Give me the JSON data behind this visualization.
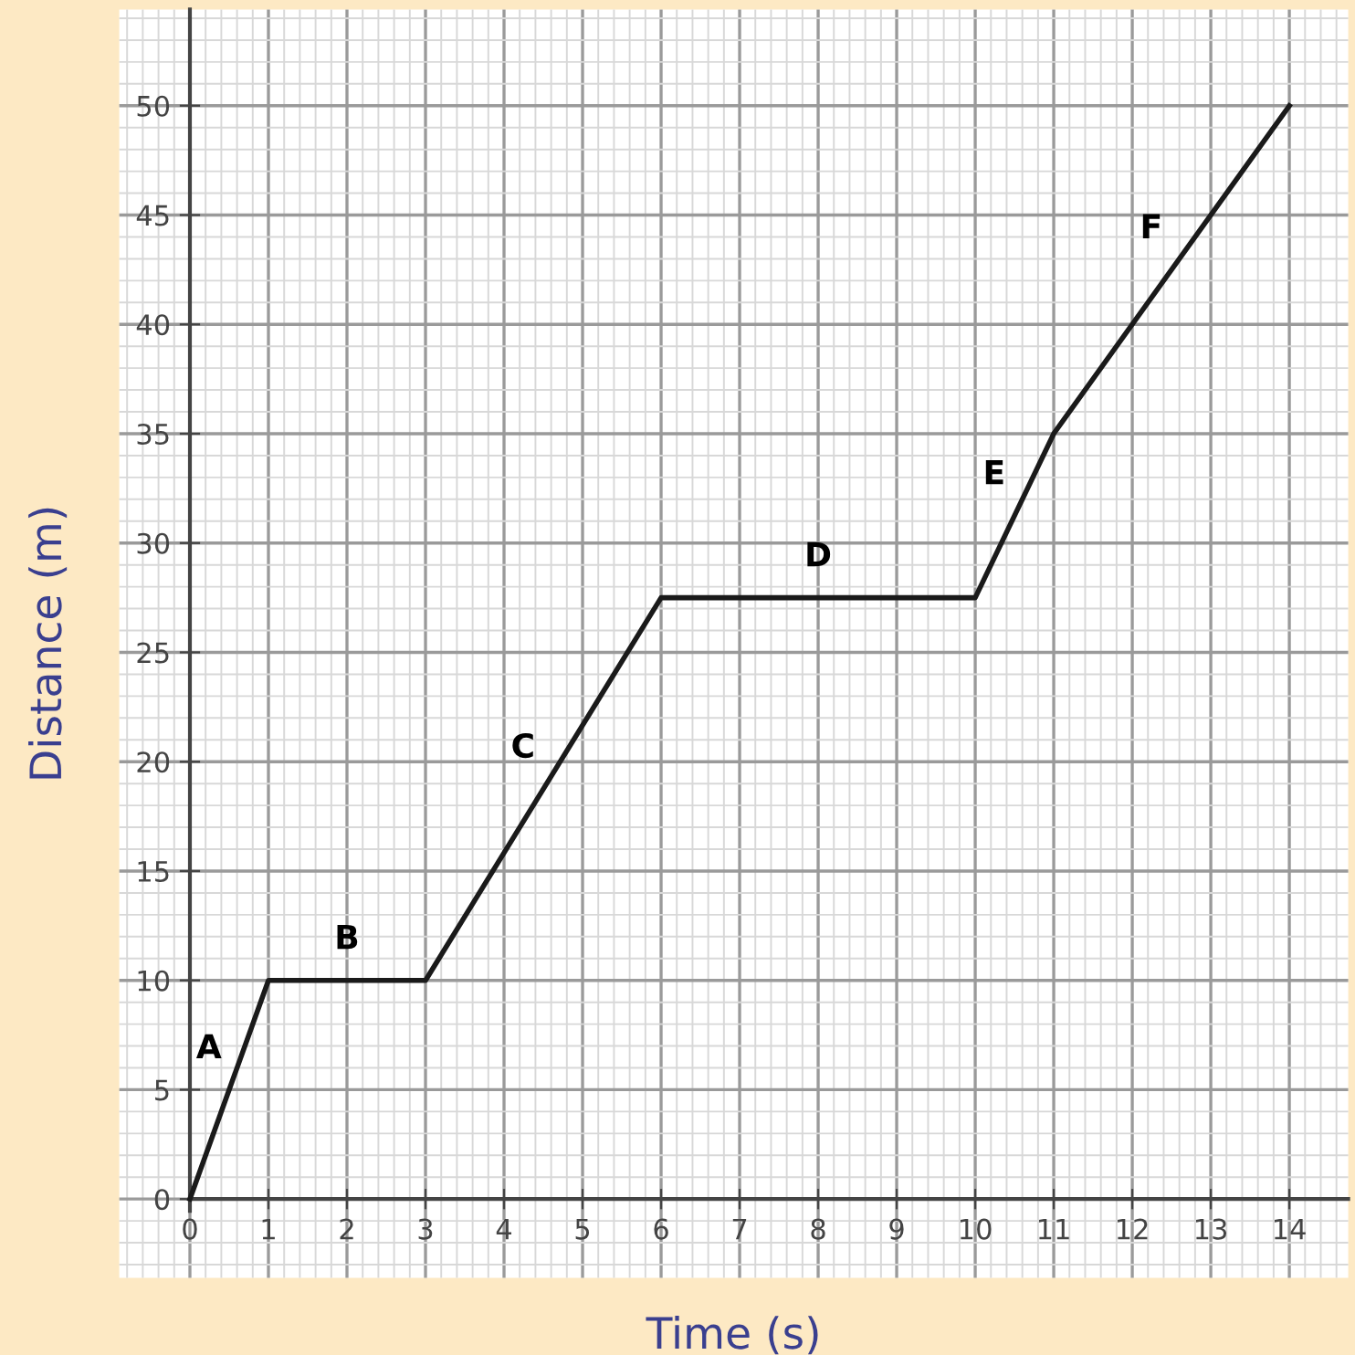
{
  "chart_data": {
    "type": "line",
    "xlabel": "Time (s)",
    "ylabel": "Distance (m)",
    "x": [
      0,
      1,
      3,
      6,
      10,
      11,
      14
    ],
    "series": [
      {
        "color": "#1a1a1a",
        "values": [
          0,
          10,
          10,
          27.5,
          27.5,
          35,
          50
        ]
      }
    ],
    "xlim": [
      -0.9,
      14.75
    ],
    "ylim": [
      -3.6,
      54.4
    ],
    "xticks": [
      0,
      1,
      2,
      3,
      4,
      5,
      6,
      7,
      8,
      9,
      10,
      11,
      12,
      13,
      14
    ],
    "yticks": [
      0,
      5,
      10,
      15,
      20,
      25,
      30,
      35,
      40,
      45,
      50
    ],
    "grid": true,
    "marker": "none",
    "line_style": "solid",
    "legend": false,
    "annotations": [
      "A",
      "B",
      "C",
      "D",
      "E",
      "F"
    ]
  }
}
